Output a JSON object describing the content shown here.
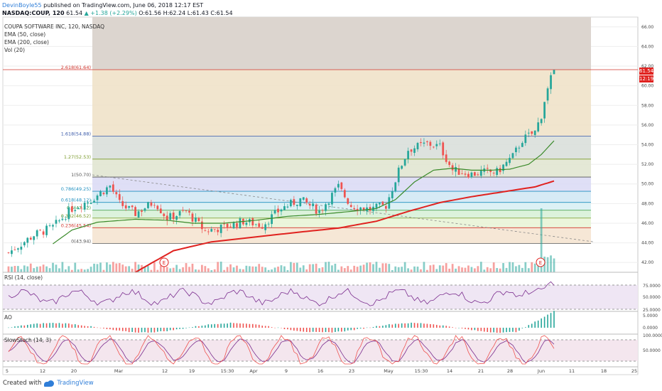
{
  "header": {
    "author": "DevinBoyle55",
    "published_text": "published on TradingView.com, June 06, 2018 12:17 EST",
    "symbol_line": "NASDAQ:COUP, 120",
    "last": "61.54",
    "change": "▲ +1.38 (+2.29%)",
    "o_label": "O:",
    "o_value": "61.56",
    "h_label": "H:",
    "h_value": "62.24",
    "l_label": "L:",
    "l_value": "61.43",
    "c_label": "C:",
    "c_value": "61.54"
  },
  "legend": {
    "title": "COUPA SOFTWARE INC, 120, NASDAQ",
    "ema50": "EMA (50, close)",
    "ema200": "EMA (200, close)",
    "vol": "Vol (20)"
  },
  "price_tags": {
    "last": "61.54",
    "countdown": "12:19"
  },
  "panes": {
    "rsi_label": "RSI (14, close)",
    "ao_label": "AO",
    "stoch_label": "SlowStoch (14, 3)"
  },
  "footer": {
    "created_with": "Created with",
    "brand": "TradingView"
  },
  "colors": {
    "ema50": "#3a8a2a",
    "ema200": "#e0221f",
    "bull": "#26a69a",
    "bear": "#ef5350",
    "rsi": "#7b2d8e",
    "stoch_k": "#ef5350",
    "stoch_d": "#7b2d8e",
    "fib_line": "#e0221f"
  },
  "chart_data": {
    "type": "candlestick",
    "symbol": "NASDAQ:COUP",
    "ylim": [
      41,
      67
    ],
    "y_ticks": [
      "66.00",
      "64.00",
      "62.00",
      "60.00",
      "58.00",
      "56.00",
      "54.00",
      "52.00",
      "50.00",
      "48.00",
      "46.00",
      "44.00",
      "42.00"
    ],
    "x_ticks": [
      "5",
      "12",
      "20",
      "Mar",
      "12",
      "19",
      "15:30",
      "Apr",
      "9",
      "16",
      "23",
      "May",
      "15:30",
      "14",
      "21",
      "28",
      "Jun",
      "11",
      "18",
      "25"
    ],
    "fib_levels": [
      {
        "label": "2.618(61.64)",
        "value": 61.64,
        "color": "#d0342c"
      },
      {
        "label": "1.618(54.88)",
        "value": 54.88,
        "color": "#3858a8"
      },
      {
        "label": "1.27(52.53)",
        "value": 52.53,
        "color": "#7a9a2a"
      },
      {
        "label": "1(50.70)",
        "value": 50.7,
        "color": "#555555"
      },
      {
        "label": "0.786(49.25)",
        "value": 49.25,
        "color": "#1f8fbf"
      },
      {
        "label": "0.618(48.12)",
        "value": 48.12,
        "color": "#1f8fbf"
      },
      {
        "label": "0.5(47.32)",
        "value": 47.32,
        "color": "#3a9a3a"
      },
      {
        "label": "0.382(46.52)",
        "value": 46.52,
        "color": "#7a9a2a"
      },
      {
        "label": "0.236(45.54)",
        "value": 45.54,
        "color": "#d0342c"
      },
      {
        "label": "0(43.94)",
        "value": 43.94,
        "color": "#555555"
      }
    ],
    "close_path": [
      [
        0,
        43.0
      ],
      [
        8,
        44.8
      ],
      [
        14,
        45.6
      ],
      [
        20,
        47.5
      ],
      [
        26,
        48.4
      ],
      [
        32,
        49.8
      ],
      [
        35,
        48.0
      ],
      [
        40,
        47.0
      ],
      [
        46,
        48.2
      ],
      [
        50,
        46.5
      ],
      [
        56,
        47.2
      ],
      [
        62,
        45.2
      ],
      [
        68,
        45.6
      ],
      [
        74,
        46.2
      ],
      [
        80,
        45.8
      ],
      [
        86,
        47.5
      ],
      [
        92,
        48.4
      ],
      [
        98,
        47.2
      ],
      [
        104,
        49.7
      ],
      [
        108,
        47.8
      ],
      [
        114,
        47.4
      ],
      [
        119,
        47.8
      ],
      [
        123,
        51.3
      ],
      [
        126,
        53.5
      ],
      [
        132,
        54.1
      ],
      [
        136,
        53.8
      ],
      [
        140,
        51.4
      ],
      [
        146,
        51.0
      ],
      [
        150,
        51.2
      ],
      [
        154,
        51.2
      ],
      [
        159,
        52.8
      ],
      [
        162,
        54.5
      ],
      [
        166,
        55.3
      ],
      [
        168,
        57.0
      ],
      [
        170,
        60.0
      ],
      [
        172,
        61.54
      ]
    ],
    "ema50_path": [
      [
        14,
        43.9
      ],
      [
        20,
        45.3
      ],
      [
        28,
        46.1
      ],
      [
        40,
        46.4
      ],
      [
        50,
        46.3
      ],
      [
        58,
        46.0
      ],
      [
        68,
        46.0
      ],
      [
        78,
        46.3
      ],
      [
        88,
        46.7
      ],
      [
        98,
        46.9
      ],
      [
        108,
        47.2
      ],
      [
        116,
        47.5
      ],
      [
        122,
        48.4
      ],
      [
        128,
        50.2
      ],
      [
        134,
        51.4
      ],
      [
        140,
        51.6
      ],
      [
        146,
        51.4
      ],
      [
        152,
        51.4
      ],
      [
        158,
        51.5
      ],
      [
        164,
        52.0
      ],
      [
        168,
        53.0
      ],
      [
        172,
        54.4
      ]
    ],
    "ema200_path": [
      [
        40,
        41.0
      ],
      [
        52,
        43.2
      ],
      [
        64,
        44.1
      ],
      [
        78,
        44.6
      ],
      [
        92,
        45.1
      ],
      [
        104,
        45.5
      ],
      [
        116,
        46.2
      ],
      [
        126,
        47.2
      ],
      [
        136,
        48.1
      ],
      [
        146,
        48.7
      ],
      [
        156,
        49.2
      ],
      [
        166,
        49.7
      ],
      [
        172,
        50.3
      ]
    ],
    "volume_spike": {
      "index": 168,
      "note": "large volume bar at breakout"
    }
  }
}
